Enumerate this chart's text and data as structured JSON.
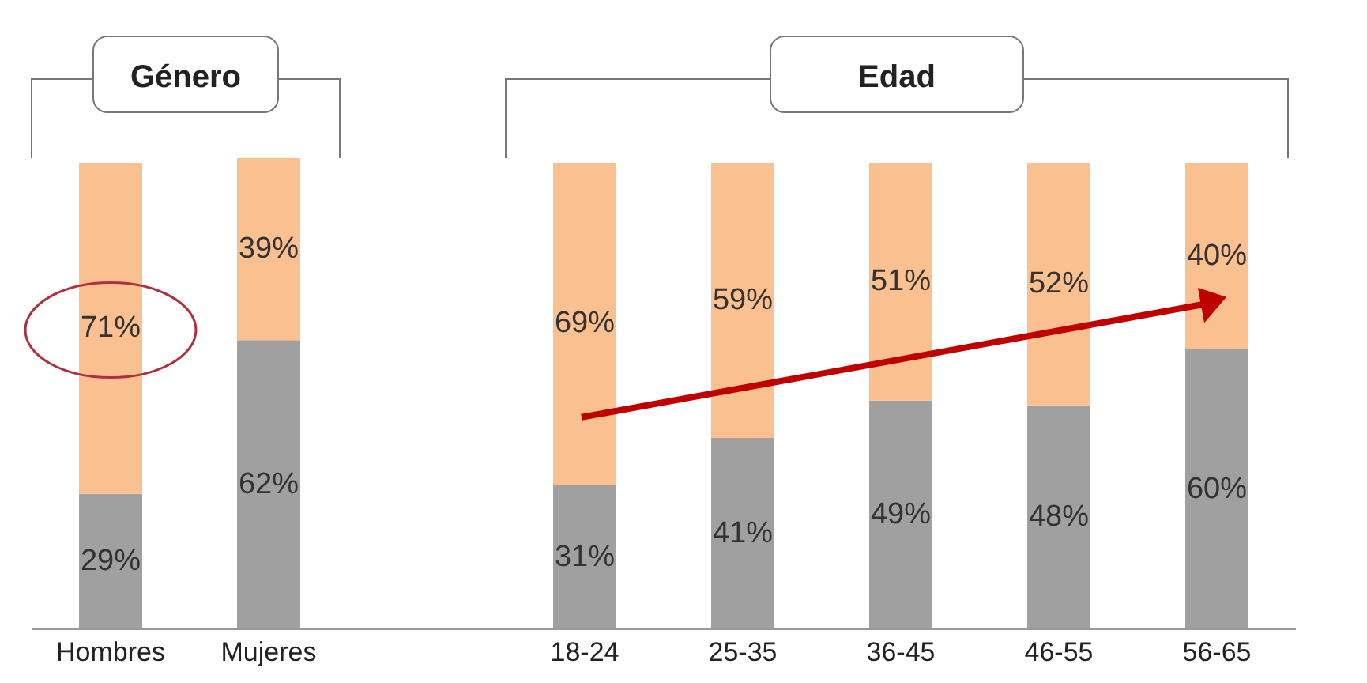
{
  "chart_data": {
    "type": "bar",
    "stacked": true,
    "annotations": [
      "Género",
      "Edad"
    ],
    "categories": [
      "Hombres",
      "Mujeres",
      null,
      "18-24",
      "25-35",
      "36-45",
      "46-55",
      "56-65"
    ],
    "series": [
      {
        "color": "#a0a0a0",
        "values": [
          29,
          62,
          null,
          31,
          41,
          49,
          48,
          60
        ],
        "value_labels": [
          "29%",
          "62%",
          null,
          "31%",
          "41%",
          "49%",
          "48%",
          "60%"
        ]
      },
      {
        "color": "#fac090",
        "values": [
          71,
          39,
          null,
          69,
          59,
          51,
          52,
          40
        ],
        "value_labels": [
          "71%",
          "39%",
          null,
          "69%",
          "59%",
          "51%",
          "52%",
          "40%"
        ]
      }
    ]
  }
}
